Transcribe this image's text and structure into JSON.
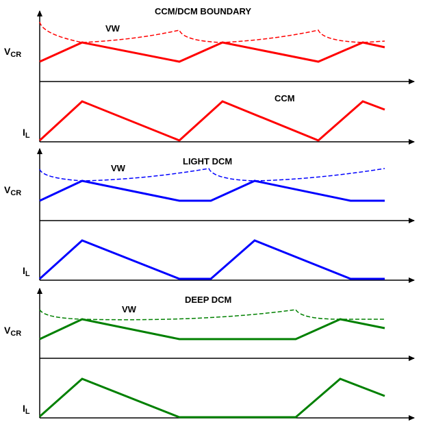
{
  "colors": {
    "axis": "#000000",
    "ccm": "#ff0000",
    "light": "#0000ff",
    "deep": "#008000"
  },
  "panels": [
    {
      "title": "CCM/DCM BOUNDARY",
      "vw_label": "VW",
      "vcr_label": "V",
      "vcr_sub": "CR",
      "il_label": "I",
      "il_sub": "L",
      "note": "CCM"
    },
    {
      "title": "LIGHT DCM",
      "vw_label": "VW",
      "vcr_label": "V",
      "vcr_sub": "CR",
      "il_label": "I",
      "il_sub": "L",
      "note": ""
    },
    {
      "title": "DEEP DCM",
      "vw_label": "VW",
      "vcr_label": "V",
      "vcr_sub": "CR",
      "il_label": "I",
      "il_sub": "L",
      "note": ""
    }
  ]
}
